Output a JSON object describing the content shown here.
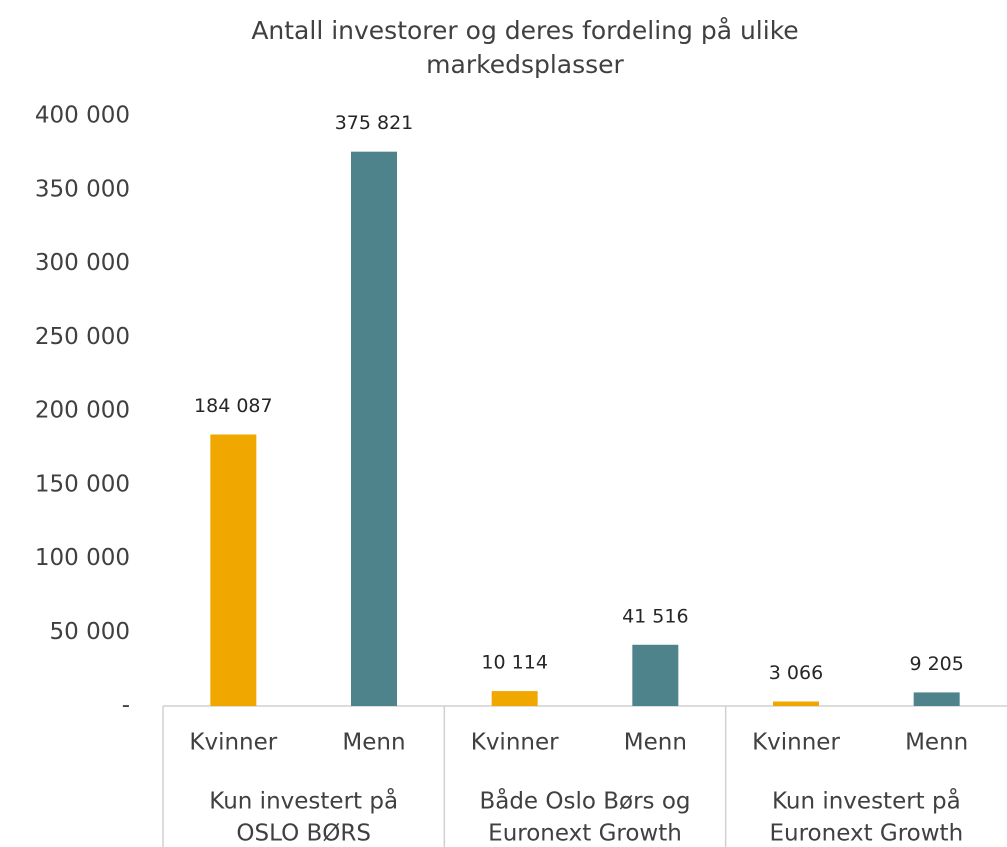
{
  "chart_data": {
    "type": "bar",
    "title": [
      "Antall investorer og deres fordeling på ulike",
      "markedsplasser"
    ],
    "categories": [
      "Kvinner",
      "Menn",
      "Kvinner",
      "Menn",
      "Kvinner",
      "Menn"
    ],
    "groups": [
      [
        "Kun investert på",
        "OSLO BØRS"
      ],
      [
        "Både Oslo Børs og",
        "Euronext Growth"
      ],
      [
        "Kun investert på",
        "Euronext Growth"
      ]
    ],
    "values": [
      184087,
      375821,
      10114,
      41516,
      3066,
      9205
    ],
    "value_labels": [
      "184 087",
      "375 821",
      "10 114",
      "41 516",
      "3 066",
      "9 205"
    ],
    "colors": [
      "#f0a800",
      "#4e838c",
      "#f0a800",
      "#4e838c",
      "#f0a800",
      "#4e838c"
    ],
    "ylim": [
      0,
      400000
    ],
    "yticks": [
      {
        "value": 0,
        "label": "-"
      },
      {
        "value": 50000,
        "label": "50 000"
      },
      {
        "value": 100000,
        "label": "100 000"
      },
      {
        "value": 150000,
        "label": "150 000"
      },
      {
        "value": 200000,
        "label": "200 000"
      },
      {
        "value": 250000,
        "label": "250 000"
      },
      {
        "value": 300000,
        "label": "300 000"
      },
      {
        "value": 350000,
        "label": "350 000"
      },
      {
        "value": 400000,
        "label": "400 000"
      }
    ]
  }
}
